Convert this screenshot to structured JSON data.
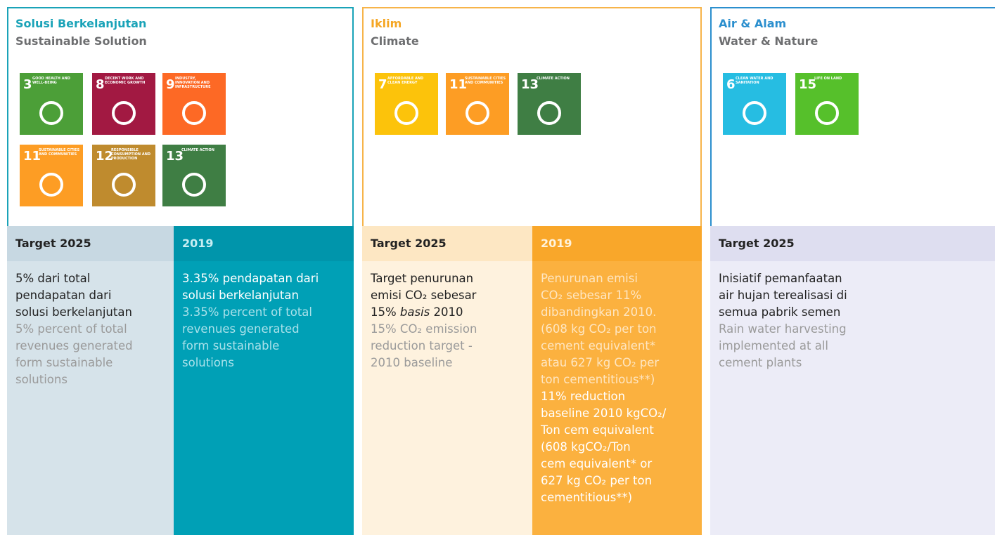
{
  "panels": [
    {
      "title": "Solusi Berkelanjutan",
      "subtitle": "Sustainable Solution",
      "goals": [
        {
          "number": "3",
          "label": "GOOD HEALTH AND WELL-BEING",
          "color": "#4c9f38"
        },
        {
          "number": "8",
          "label": "DECENT WORK AND ECONOMIC GROWTH",
          "color": "#a21942"
        },
        {
          "number": "9",
          "label": "INDUSTRY, INNOVATION AND INFRASTRUCTURE",
          "color": "#fd6925"
        },
        {
          "number": "11",
          "label": "SUSTAINABLE CITIES AND COMMUNITIES",
          "color": "#fd9d24"
        },
        {
          "number": "12",
          "label": "RESPONSIBLE CONSUMPTION AND PRODUCTION",
          "color": "#bf8b2e"
        },
        {
          "number": "13",
          "label": "CLIMATE ACTION",
          "color": "#3f7e44"
        }
      ],
      "columns": [
        {
          "heading": "Target 2025",
          "id": [
            "5% dari total",
            "pendapatan dari",
            "solusi berkelanjutan"
          ],
          "en": [
            "5% percent of total",
            "revenues generated",
            "form sustainable",
            "solutions"
          ]
        },
        {
          "heading": "2019",
          "id": [
            "3.35% pendapatan dari",
            "solusi berkelanjutan"
          ],
          "en": [
            "3.35% percent of total",
            "revenues generated",
            "form sustainable",
            "solutions"
          ]
        }
      ]
    },
    {
      "title": "Iklim",
      "subtitle": "Climate",
      "goals": [
        {
          "number": "7",
          "label": "AFFORDABLE AND CLEAN ENERGY",
          "color": "#fcc30b"
        },
        {
          "number": "11",
          "label": "SUSTAINABLE CITIES AND COMMUNITIES",
          "color": "#fd9d24"
        },
        {
          "number": "13",
          "label": "CLIMATE ACTION",
          "color": "#3f7e44"
        }
      ],
      "columns": [
        {
          "heading": "Target 2025",
          "id": [
            "Target penurunan",
            "emisi CO₂ sebesar",
            [
              "15% ",
              "basis",
              " 2010"
            ]
          ],
          "en": [
            "15% CO₂ emission",
            "reduction target -",
            "2010 baseline"
          ]
        },
        {
          "heading": "2019",
          "id": [
            "Penurunan emisi",
            "CO₂ sebesar 11%",
            "dibandingkan 2010.",
            "(608 kg CO₂ per ton",
            "cement equivalent*",
            "atau 627 kg CO₂ per",
            "ton cementitious**)"
          ],
          "en": [
            "11% reduction",
            "baseline 2010 kgCO₂/",
            "Ton cem equivalent",
            "(608 kgCO₂/Ton",
            "cem equivalent*  or",
            "627 kg CO₂ per ton",
            "cementitious**)"
          ]
        }
      ]
    },
    {
      "title": "Air & Alam",
      "subtitle": "Water & Nature",
      "goals": [
        {
          "number": "6",
          "label": "CLEAN WATER AND SANITATION",
          "color": "#26bde2"
        },
        {
          "number": "15",
          "label": "LIFE ON LAND",
          "color": "#56c02b"
        }
      ],
      "columns": [
        {
          "heading": "Target 2025",
          "id": [
            "Inisiatif pemanfaatan",
            "air hujan terealisasi di",
            "semua pabrik semen"
          ],
          "en": [
            "Rain water harvesting",
            "implemented at all",
            "cement plants"
          ]
        }
      ]
    }
  ]
}
